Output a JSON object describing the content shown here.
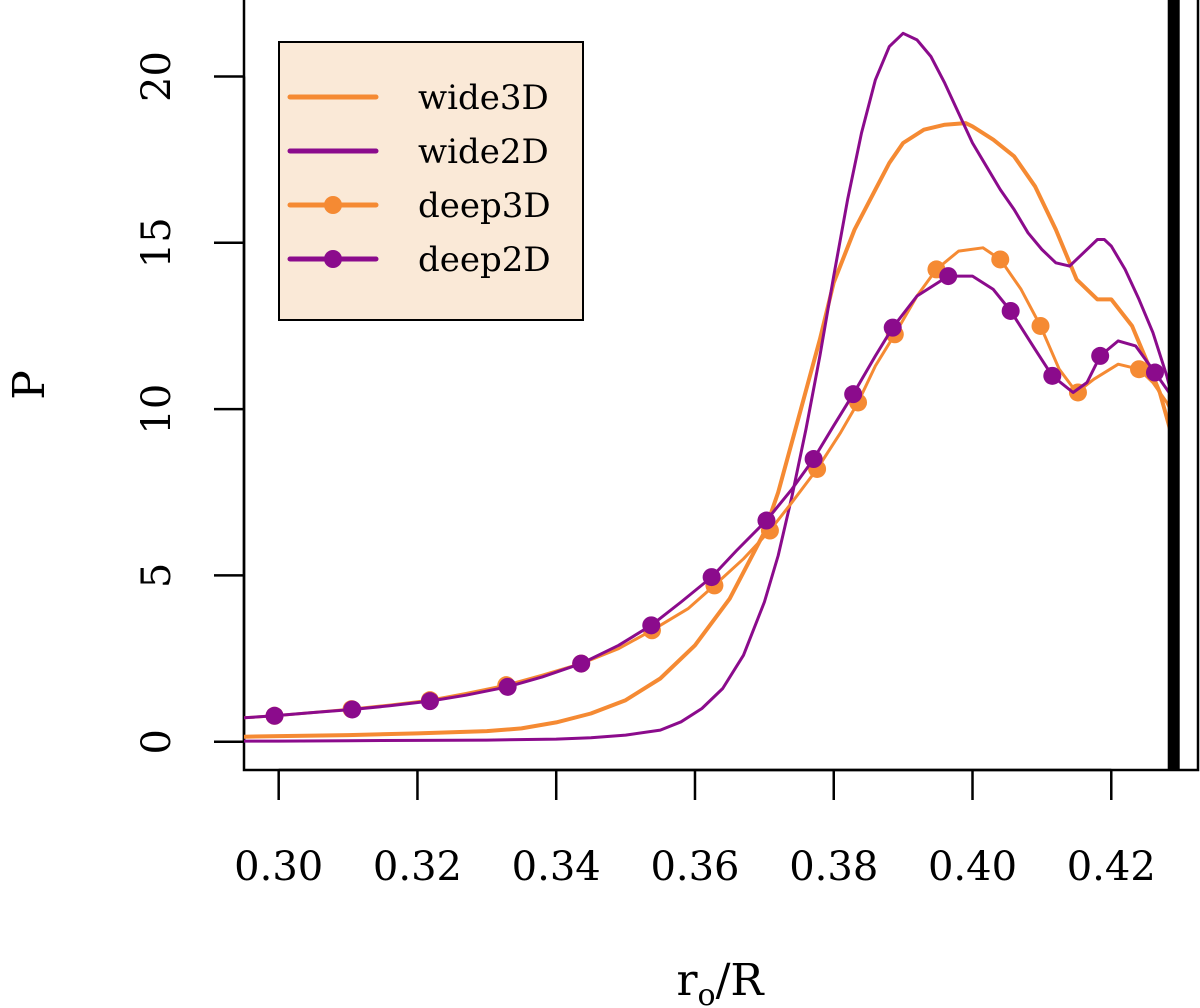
{
  "chart_data": {
    "type": "line",
    "xlabel_main": "r",
    "xlabel_sub": "o",
    "xlabel_rest": "/R",
    "ylabel": "P",
    "xlim": [
      0.295,
      0.4325
    ],
    "ylim": [
      -0.85,
      22.3
    ],
    "x_ticks": [
      0.3,
      0.32,
      0.34,
      0.36,
      0.38,
      0.4,
      0.42
    ],
    "x_tick_labels": [
      "0.30",
      "0.32",
      "0.34",
      "0.36",
      "0.38",
      "0.40",
      "0.42"
    ],
    "y_ticks": [
      0,
      5,
      10,
      15,
      20
    ],
    "y_tick_labels": [
      "0",
      "5",
      "10",
      "15",
      "20"
    ],
    "vertical_line_x": 0.429,
    "legend_position": "top-left",
    "legend_background": "#fae9d7",
    "colors": {
      "orange": "#f58a33",
      "purple": "#8b0b8c"
    },
    "series": [
      {
        "name": "wide3D",
        "color": "#f58a33",
        "markers": false,
        "thick": true,
        "x": [
          0.295,
          0.3,
          0.31,
          0.32,
          0.33,
          0.335,
          0.34,
          0.345,
          0.35,
          0.355,
          0.36,
          0.365,
          0.37,
          0.372,
          0.375,
          0.378,
          0.38,
          0.383,
          0.386,
          0.388,
          0.39,
          0.393,
          0.396,
          0.399,
          0.4,
          0.403,
          0.406,
          0.409,
          0.412,
          0.415,
          0.418,
          0.42,
          0.423,
          0.425,
          0.427,
          0.429
        ],
        "y": [
          0.15,
          0.17,
          0.2,
          0.25,
          0.32,
          0.4,
          0.58,
          0.85,
          1.25,
          1.9,
          2.9,
          4.3,
          6.3,
          7.5,
          9.8,
          12.1,
          13.8,
          15.4,
          16.6,
          17.4,
          18.0,
          18.4,
          18.55,
          18.6,
          18.5,
          18.1,
          17.6,
          16.7,
          15.4,
          13.9,
          13.3,
          13.3,
          12.5,
          11.5,
          10.5,
          9.0
        ]
      },
      {
        "name": "wide2D",
        "color": "#8b0b8c",
        "markers": false,
        "thick": false,
        "x": [
          0.295,
          0.3,
          0.31,
          0.32,
          0.33,
          0.34,
          0.345,
          0.35,
          0.355,
          0.358,
          0.361,
          0.364,
          0.367,
          0.37,
          0.372,
          0.374,
          0.376,
          0.378,
          0.38,
          0.382,
          0.384,
          0.386,
          0.388,
          0.39,
          0.392,
          0.394,
          0.396,
          0.398,
          0.4,
          0.402,
          0.404,
          0.406,
          0.408,
          0.41,
          0.412,
          0.414,
          0.416,
          0.418,
          0.419,
          0.42,
          0.422,
          0.424,
          0.426,
          0.428,
          0.429
        ],
        "y": [
          0.02,
          0.02,
          0.03,
          0.04,
          0.05,
          0.08,
          0.12,
          0.2,
          0.35,
          0.6,
          1.0,
          1.6,
          2.6,
          4.2,
          5.6,
          7.4,
          9.4,
          11.6,
          14.0,
          16.3,
          18.3,
          19.9,
          20.9,
          21.3,
          21.1,
          20.6,
          19.8,
          18.9,
          18.0,
          17.3,
          16.6,
          16.0,
          15.3,
          14.8,
          14.4,
          14.3,
          14.7,
          15.1,
          15.1,
          14.9,
          14.2,
          13.3,
          12.3,
          11.0,
          10.2
        ]
      },
      {
        "name": "deep3D",
        "color": "#f58a33",
        "markers": true,
        "thick": false,
        "x": [
          0.295,
          0.2994,
          0.305,
          0.3105,
          0.316,
          0.3218,
          0.327,
          0.3328,
          0.338,
          0.3436,
          0.349,
          0.3538,
          0.359,
          0.3628,
          0.367,
          0.3708,
          0.374,
          0.3776,
          0.381,
          0.3835,
          0.386,
          0.3888,
          0.392,
          0.3948,
          0.398,
          0.4015,
          0.404,
          0.407,
          0.4098,
          0.4125,
          0.415,
          0.4175,
          0.421,
          0.424,
          0.426,
          0.428,
          0.429
        ],
        "y": [
          0.72,
          0.78,
          0.88,
          0.98,
          1.1,
          1.25,
          1.45,
          1.7,
          2.0,
          2.35,
          2.8,
          3.35,
          4.0,
          4.7,
          5.5,
          6.35,
          7.2,
          8.2,
          9.3,
          10.2,
          11.3,
          12.25,
          13.4,
          14.2,
          14.75,
          14.85,
          14.5,
          13.6,
          12.5,
          11.2,
          10.5,
          10.9,
          11.35,
          11.2,
          10.8,
          10.2,
          9.8
        ],
        "marker_x": [
          0.2994,
          0.3105,
          0.3218,
          0.3328,
          0.3436,
          0.3538,
          0.3628,
          0.3708,
          0.3776,
          0.3835,
          0.3888,
          0.3948,
          0.404,
          0.4098,
          0.4152,
          0.424
        ],
        "marker_y": [
          0.78,
          0.98,
          1.25,
          1.7,
          2.35,
          3.35,
          4.7,
          6.35,
          8.2,
          10.2,
          12.25,
          14.2,
          14.5,
          12.5,
          10.5,
          11.2
        ]
      },
      {
        "name": "deep2D",
        "color": "#8b0b8c",
        "markers": true,
        "thick": false,
        "x": [
          0.295,
          0.2994,
          0.305,
          0.3106,
          0.316,
          0.3218,
          0.327,
          0.333,
          0.338,
          0.3436,
          0.349,
          0.3537,
          0.358,
          0.3624,
          0.366,
          0.3703,
          0.374,
          0.3771,
          0.38,
          0.3828,
          0.386,
          0.3885,
          0.392,
          0.3965,
          0.4,
          0.403,
          0.4055,
          0.409,
          0.4115,
          0.4145,
          0.4165,
          0.4184,
          0.421,
          0.4235,
          0.4263,
          0.428,
          0.429
        ],
        "y": [
          0.72,
          0.78,
          0.88,
          0.97,
          1.08,
          1.22,
          1.4,
          1.65,
          1.95,
          2.35,
          2.9,
          3.5,
          4.2,
          4.95,
          5.75,
          6.65,
          7.6,
          8.5,
          9.5,
          10.45,
          11.6,
          12.45,
          13.4,
          14.0,
          14.0,
          13.6,
          12.95,
          11.8,
          11.0,
          10.5,
          10.8,
          11.6,
          12.05,
          11.9,
          11.1,
          10.6,
          10.3
        ],
        "marker_x": [
          0.2994,
          0.3106,
          0.3218,
          0.333,
          0.3436,
          0.3537,
          0.3624,
          0.3703,
          0.3771,
          0.3828,
          0.3885,
          0.3965,
          0.4055,
          0.4115,
          0.4184,
          0.4263
        ],
        "marker_y": [
          0.78,
          0.97,
          1.22,
          1.65,
          2.35,
          3.5,
          4.95,
          6.65,
          8.5,
          10.45,
          12.45,
          14.0,
          12.95,
          11.0,
          11.6,
          11.1
        ]
      }
    ]
  }
}
